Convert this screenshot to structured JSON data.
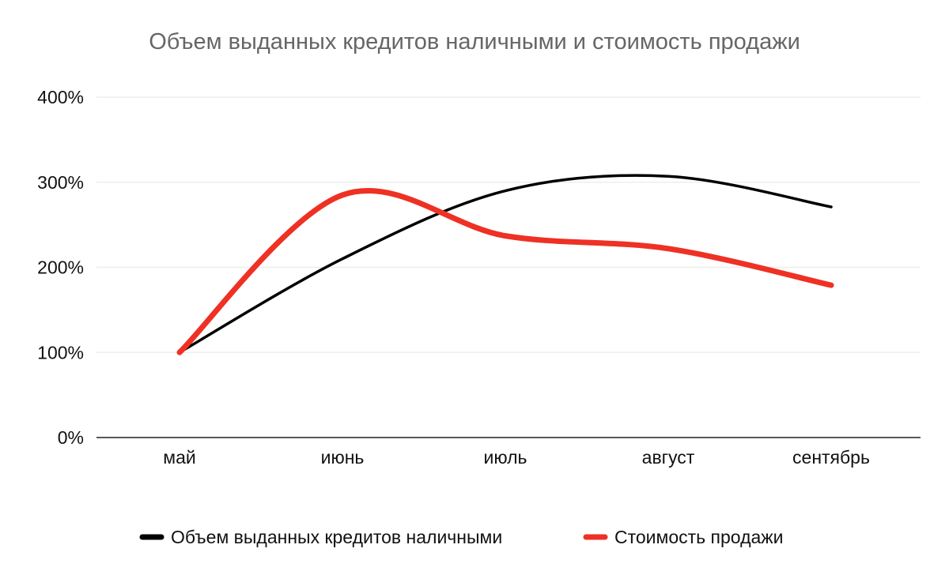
{
  "chart_data": {
    "type": "line",
    "title": "Объем выданных кредитов наличными и стоимость продажи",
    "xlabel": "",
    "ylabel": "",
    "categories": [
      "май",
      "июнь",
      "июль",
      "август",
      "сентябрь"
    ],
    "ylim": [
      0,
      400
    ],
    "yticks": [
      0,
      100,
      200,
      300,
      400
    ],
    "ytick_labels": [
      "0%",
      "100%",
      "200%",
      "300%",
      "400%"
    ],
    "grid": true,
    "legend_position": "bottom-center",
    "smooth": true,
    "series": [
      {
        "name": "Объем выданных кредитов наличными",
        "values": [
          100,
          210,
          290,
          307,
          271
        ],
        "color": "#000000"
      },
      {
        "name": "Стоимость продажи",
        "values": [
          100,
          285,
          237,
          222,
          179
        ],
        "color": "#ee3124"
      }
    ]
  }
}
